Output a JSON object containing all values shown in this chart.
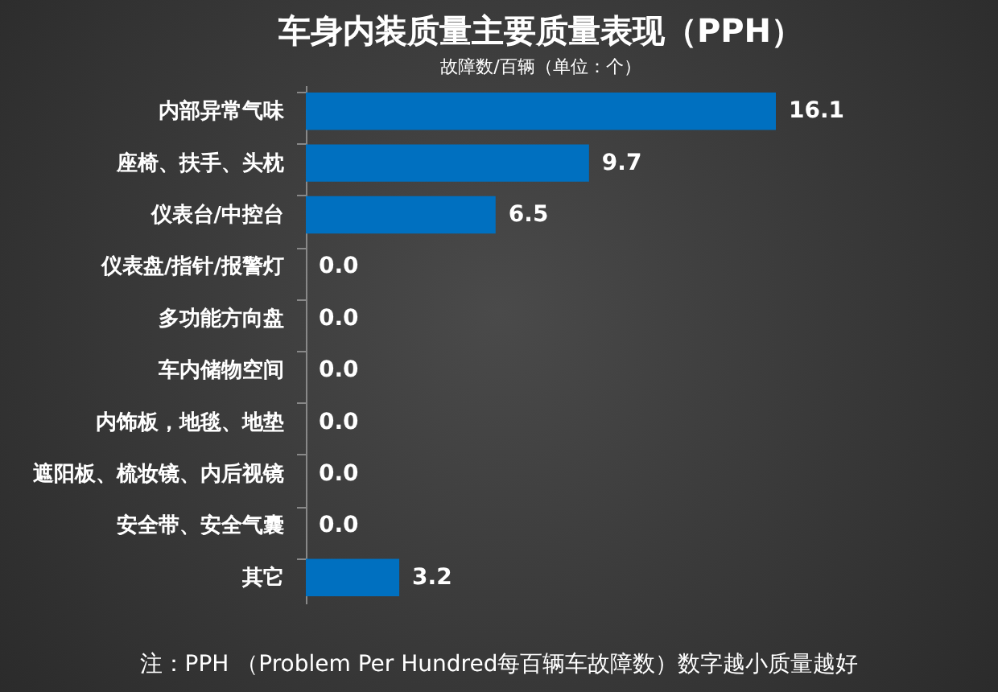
{
  "chart_data": {
    "type": "bar",
    "orientation": "horizontal",
    "title": "车身内装质量主要质量表现（PPH）",
    "subtitle": "故障数/百辆（单位：个）",
    "categories": [
      "内部异常气味",
      "座椅、扶手、头枕",
      "仪表台/中控台",
      "仪表盘/指针/报警灯",
      "多功能方向盘",
      "车内储物空间",
      "内饰板，地毯、地垫",
      "遮阳板、梳妆镜、内后视镜",
      "安全带、安全气囊",
      "其它"
    ],
    "values": [
      16.1,
      9.7,
      6.5,
      0,
      0,
      0,
      0,
      0,
      0,
      3.2
    ],
    "value_labels": [
      "16.1",
      "9.7",
      "6.5",
      "0.0",
      "0.0",
      "0.0",
      "0.0",
      "0.0",
      "0.0",
      "3.2"
    ],
    "color": "#0070c0",
    "annotations": [
      "注：PPH （Problem Per Hundred每百辆车故障数）数字越小质量越好"
    ]
  }
}
